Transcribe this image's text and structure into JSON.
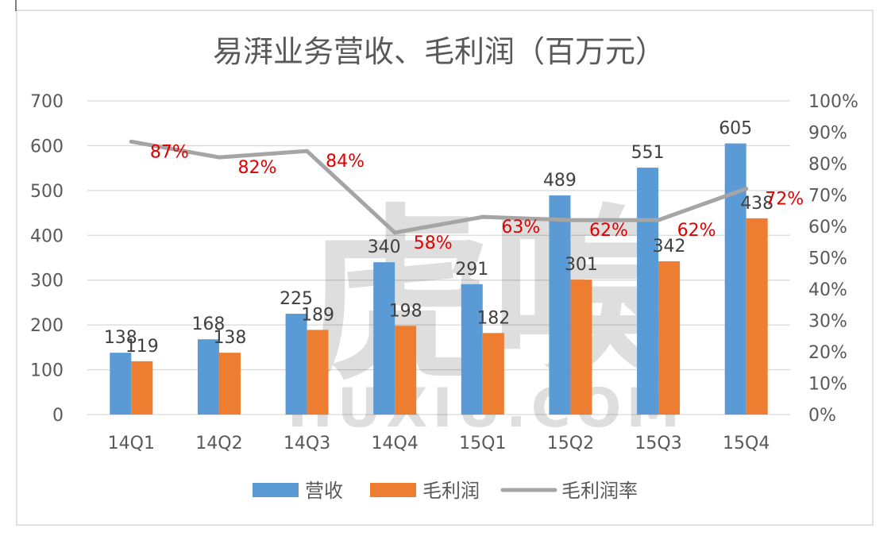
{
  "chart_data": {
    "type": "bar",
    "title": "易湃业务营收、毛利润（百万元）",
    "categories": [
      "14Q1",
      "14Q2",
      "14Q3",
      "14Q4",
      "15Q1",
      "15Q2",
      "15Q3",
      "15Q4"
    ],
    "series": [
      {
        "name": "营收",
        "kind": "bar",
        "axis": "left",
        "color": "#5B9BD5",
        "values": [
          138,
          168,
          225,
          340,
          291,
          489,
          551,
          605
        ],
        "labels": [
          "138",
          "168",
          "225",
          "340",
          "291",
          "489",
          "551",
          "605"
        ]
      },
      {
        "name": "毛利润",
        "kind": "bar",
        "axis": "left",
        "color": "#ED7D31",
        "values": [
          119,
          138,
          189,
          198,
          182,
          301,
          342,
          438
        ],
        "labels": [
          "119",
          "138",
          "189",
          "198",
          "182",
          "301",
          "342",
          "438"
        ]
      },
      {
        "name": "毛利润率",
        "kind": "line",
        "axis": "right",
        "color": "#A5A5A5",
        "label_color": "#E00000",
        "values": [
          0.87,
          0.82,
          0.84,
          0.58,
          0.63,
          0.62,
          0.62,
          0.72
        ],
        "labels": [
          "87%",
          "82%",
          "84%",
          "58%",
          "63%",
          "62%",
          "62%",
          "72%"
        ]
      }
    ],
    "y_left": {
      "range": [
        0,
        700
      ],
      "ticks": [
        "0",
        "100",
        "200",
        "300",
        "400",
        "500",
        "600",
        "700"
      ]
    },
    "y_right": {
      "range": [
        0,
        1
      ],
      "ticks": [
        "0%",
        "10%",
        "20%",
        "30%",
        "40%",
        "50%",
        "60%",
        "70%",
        "80%",
        "90%",
        "100%"
      ]
    },
    "grid": true,
    "legend": "bottom",
    "watermark": {
      "glyphs": "虎嗅",
      "text": "HUXIU.COM"
    }
  }
}
